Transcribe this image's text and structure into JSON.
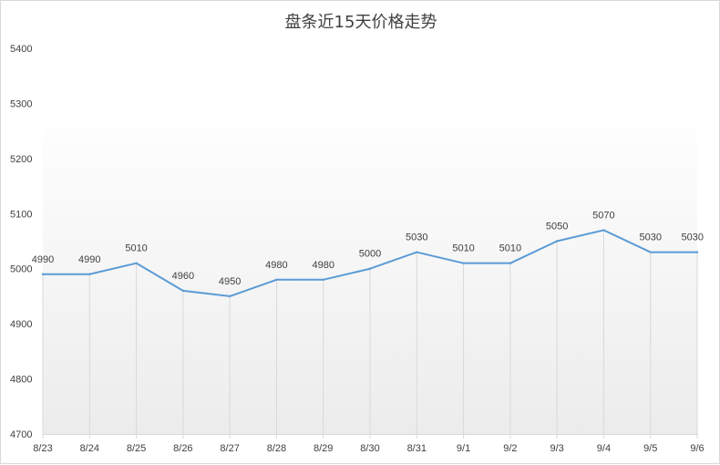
{
  "chart_data": {
    "type": "line",
    "title": "盘条近15天价格走势",
    "xlabel": "",
    "ylabel": "",
    "categories": [
      "8/23",
      "8/24",
      "8/25",
      "8/26",
      "8/27",
      "8/28",
      "8/29",
      "8/30",
      "8/31",
      "9/1",
      "9/2",
      "9/3",
      "9/4",
      "9/5",
      "9/6"
    ],
    "series": [
      {
        "values": [
          4990,
          4990,
          5010,
          4960,
          4950,
          4980,
          4980,
          5000,
          5030,
          5010,
          5010,
          5050,
          5070,
          5030,
          5030
        ]
      }
    ],
    "ylim": [
      4700,
      5400
    ],
    "yticks": [
      "5400",
      "5300",
      "5200",
      "5100",
      "5000",
      "4900",
      "4800",
      "4700"
    ],
    "data_labels": [
      "4990",
      "4990",
      "5010",
      "4960",
      "4950",
      "4980",
      "4980",
      "5000",
      "5030",
      "5010",
      "5010",
      "5050",
      "5070",
      "5030",
      "5030"
    ],
    "grid": "vertical",
    "line_color": "#5b9bd5",
    "grid_color": "#d9d9d9",
    "text_color": "#404040"
  }
}
